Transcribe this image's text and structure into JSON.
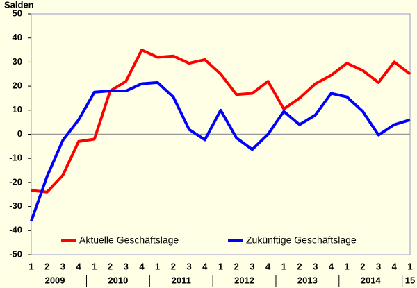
{
  "chart_data": {
    "type": "line",
    "ylabel": "Salden",
    "categories": [
      "1",
      "2",
      "3",
      "4",
      "1",
      "2",
      "3",
      "4",
      "1",
      "2",
      "3",
      "4",
      "1",
      "2",
      "3",
      "4",
      "1",
      "2",
      "3",
      "4",
      "1",
      "2",
      "3",
      "4",
      "1"
    ],
    "category_groups": [
      "2009",
      "2010",
      "2011",
      "2012",
      "2013",
      "2014",
      "15"
    ],
    "series": [
      {
        "name": "Aktuelle Geschäftslage",
        "color": "#ff0000",
        "values": [
          -23.3,
          -24,
          -17,
          -3,
          -2,
          18,
          22,
          35,
          32,
          32.5,
          29.5,
          31,
          25,
          16.5,
          17,
          22,
          10.5,
          15,
          21,
          24.5,
          29.5,
          26.5,
          21.5,
          30,
          25
        ]
      },
      {
        "name": "Zukünftige Geschäftslage",
        "color": "#0000ff",
        "values": [
          -36,
          -17.5,
          -2.5,
          6,
          17.5,
          18,
          18,
          21,
          21.5,
          15.5,
          2,
          -2.3,
          10,
          -1.5,
          -6.3,
          0,
          9.5,
          4,
          8,
          17,
          15.5,
          9.5,
          -0.3,
          4,
          6
        ]
      }
    ],
    "ylim": [
      -50,
      50
    ],
    "yticks": [
      -50,
      -40,
      -30,
      -20,
      -10,
      0,
      10,
      20,
      30,
      40,
      50
    ],
    "zero_line": true,
    "legend": "bottom"
  }
}
